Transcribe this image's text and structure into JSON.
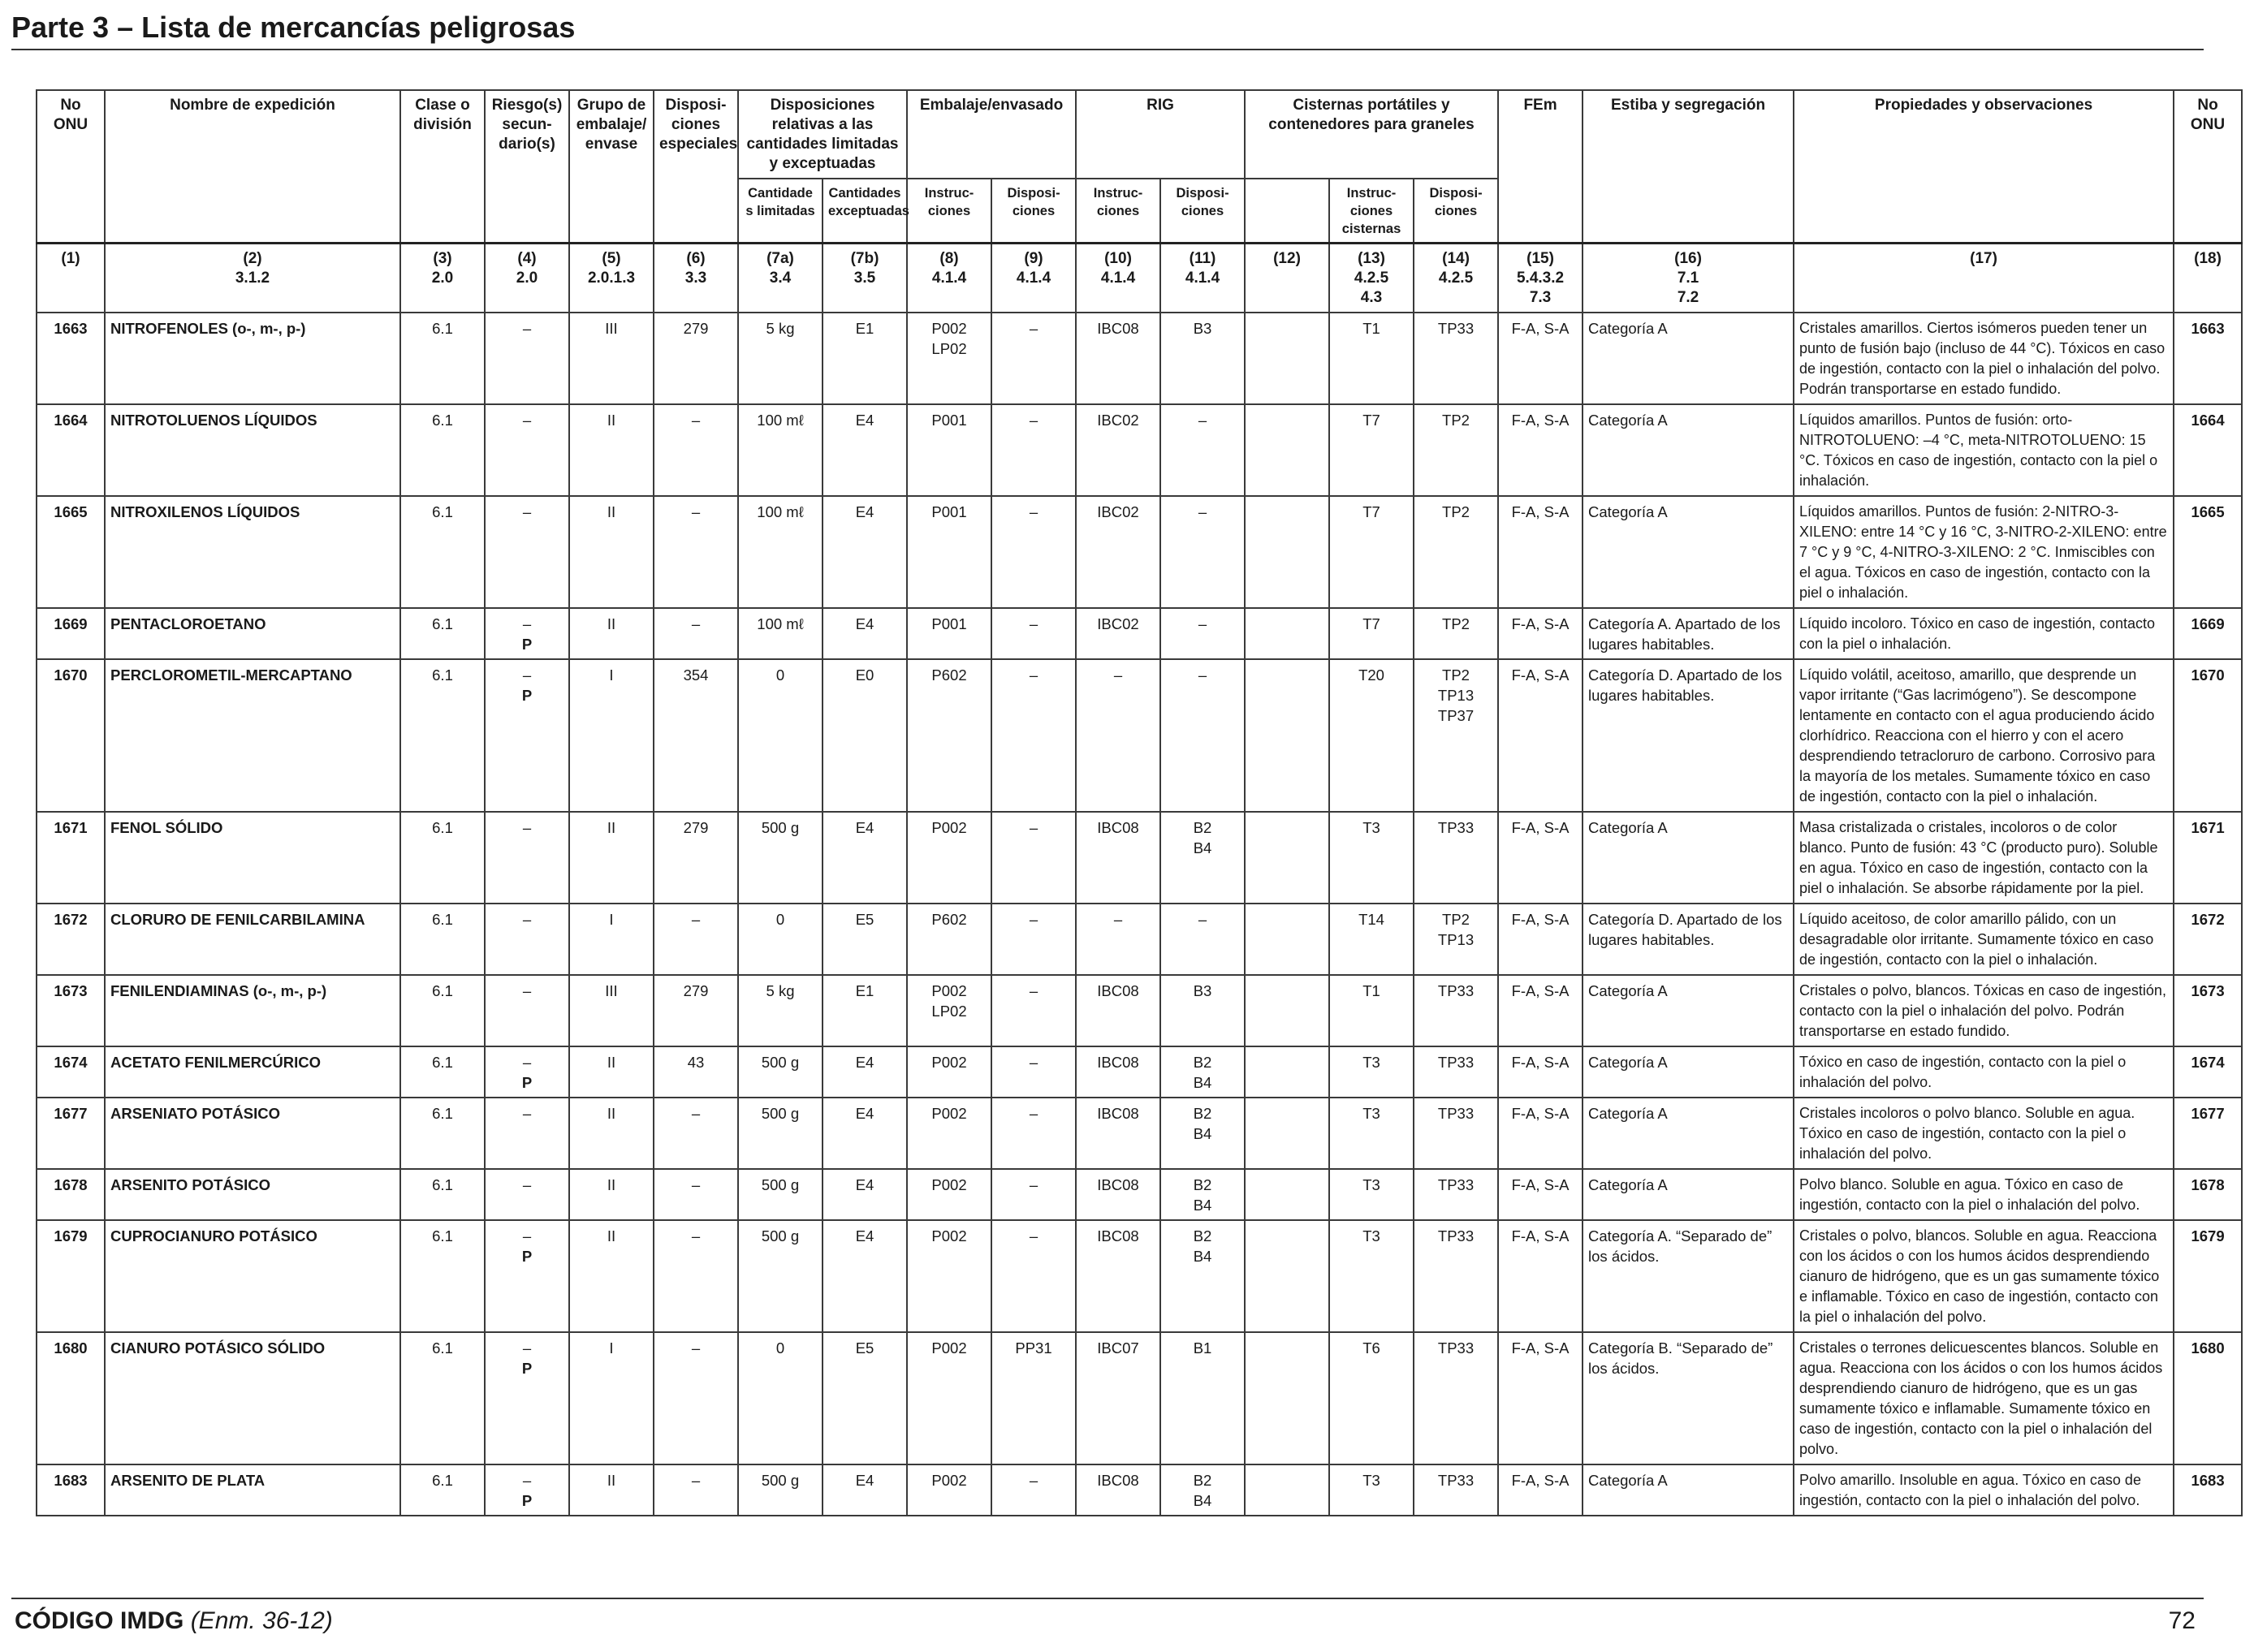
{
  "header": {
    "title": "Parte 3 – Lista de mercancías peligrosas"
  },
  "table": {
    "headers": {
      "onu": "No ONU",
      "name": "Nombre de expedición",
      "clase": "Clase o división",
      "riesgo": "Riesgo(s) secun- dario(s)",
      "grupo": "Grupo de embalaje/ envase",
      "disp_esp": "Disposi- ciones especiales",
      "disp_rel": "Disposiciones relativas a las cantidades limitadas y exceptuadas",
      "cant_lim": "Cantidade s limitadas",
      "cant_exc": "Cantidades exceptuadas",
      "embalaje": "Embalaje/envasado",
      "emb_instr": "Instruc- ciones",
      "emb_disp": "Disposi- ciones",
      "rig": "RIG",
      "rig_instr": "Instruc- ciones",
      "rig_disp": "Disposi- ciones",
      "cisternas": "Cisternas portátiles y contenedores para graneles",
      "cis_instr": "Instruc- ciones cisternas",
      "cis_disp": "Disposi- ciones",
      "fem": "FEm",
      "estiba": "Estiba y segregación",
      "propiedades": "Propiedades y observaciones",
      "onu_right": "No ONU"
    },
    "refs": [
      [
        "(1)"
      ],
      [
        "(2)",
        "3.1.2"
      ],
      [
        "(3)",
        "2.0"
      ],
      [
        "(4)",
        "2.0"
      ],
      [
        "(5)",
        "2.0.1.3"
      ],
      [
        "(6)",
        "3.3"
      ],
      [
        "(7a)",
        "3.4"
      ],
      [
        "(7b)",
        "3.5"
      ],
      [
        "(8)",
        "4.1.4"
      ],
      [
        "(9)",
        "4.1.4"
      ],
      [
        "(10)",
        "4.1.4"
      ],
      [
        "(11)",
        "4.1.4"
      ],
      [
        "(12)"
      ],
      [
        "(13)",
        "4.2.5",
        "4.3"
      ],
      [
        "(14)",
        "4.2.5"
      ],
      [
        "(15)",
        "5.4.3.2",
        "7.3"
      ],
      [
        "(16)",
        "7.1",
        "7.2"
      ],
      [
        "(17)"
      ],
      [
        "(18)"
      ]
    ],
    "rows": [
      {
        "onu": "1663",
        "name": "NITROFENOLES (o-, m-, p-)",
        "clase": "6.1",
        "riesgo": [
          "–"
        ],
        "grupo": "III",
        "disp_esp": "279",
        "cant_lim": "5 kg",
        "cant_exc": "E1",
        "emb_instr": [
          "P002",
          "LP02"
        ],
        "emb_disp": "–",
        "rig_instr": "IBC08",
        "rig_disp": [
          "B3"
        ],
        "c12": "",
        "cis_instr": "T1",
        "cis_disp": [
          "TP33"
        ],
        "fem": "F-A, S-A",
        "estiba": "Categoría A",
        "props": "Cristales amarillos. Ciertos isómeros pueden tener un punto de fusión bajo (incluso de 44 °C). Tóxicos en caso de ingestión, contacto con la piel o inhalación del polvo. Podrán transportarse en estado fundido.",
        "onu_r": "1663"
      },
      {
        "onu": "1664",
        "name": "NITROTOLUENOS LÍQUIDOS",
        "clase": "6.1",
        "riesgo": [
          "–"
        ],
        "grupo": "II",
        "disp_esp": "–",
        "cant_lim": "100 mℓ",
        "cant_exc": "E4",
        "emb_instr": [
          "P001"
        ],
        "emb_disp": "–",
        "rig_instr": "IBC02",
        "rig_disp": [
          "–"
        ],
        "c12": "",
        "cis_instr": "T7",
        "cis_disp": [
          "TP2"
        ],
        "fem": "F-A, S-A",
        "estiba": "Categoría A",
        "props": "Líquidos amarillos. Puntos de fusión: orto-NITROTOLUENO: –4 °C, meta-NITROTOLUENO: 15 °C. Tóxicos en caso de ingestión, contacto con la piel o inhalación.",
        "onu_r": "1664"
      },
      {
        "onu": "1665",
        "name": "NITROXILENOS LÍQUIDOS",
        "clase": "6.1",
        "riesgo": [
          "–"
        ],
        "grupo": "II",
        "disp_esp": "–",
        "cant_lim": "100 mℓ",
        "cant_exc": "E4",
        "emb_instr": [
          "P001"
        ],
        "emb_disp": "–",
        "rig_instr": "IBC02",
        "rig_disp": [
          "–"
        ],
        "c12": "",
        "cis_instr": "T7",
        "cis_disp": [
          "TP2"
        ],
        "fem": "F-A, S-A",
        "estiba": "Categoría A",
        "props": "Líquidos amarillos. Puntos de fusión: 2-NITRO-3-XILENO: entre 14 °C y 16 °C, 3-NITRO-2-XILENO: entre 7 °C y 9 °C, 4-NITRO-3-XILENO: 2 °C. Inmiscibles con el agua. Tóxicos en caso de ingestión, contacto con la piel o inhalación.",
        "onu_r": "1665"
      },
      {
        "onu": "1669",
        "name": "PENTACLOROETANO",
        "clase": "6.1",
        "riesgo": [
          "–",
          "P"
        ],
        "grupo": "II",
        "disp_esp": "–",
        "cant_lim": "100 mℓ",
        "cant_exc": "E4",
        "emb_instr": [
          "P001"
        ],
        "emb_disp": "–",
        "rig_instr": "IBC02",
        "rig_disp": [
          "–"
        ],
        "c12": "",
        "cis_instr": "T7",
        "cis_disp": [
          "TP2"
        ],
        "fem": "F-A, S-A",
        "estiba": "Categoría A. Apartado de los lugares habitables.",
        "props": "Líquido incoloro. Tóxico en caso de ingestión, contacto con la piel o inhalación.",
        "onu_r": "1669"
      },
      {
        "onu": "1670",
        "name": "PERCLOROMETIL-MERCAPTANO",
        "clase": "6.1",
        "riesgo": [
          "–",
          "P"
        ],
        "grupo": "I",
        "disp_esp": "354",
        "cant_lim": "0",
        "cant_exc": "E0",
        "emb_instr": [
          "P602"
        ],
        "emb_disp": "–",
        "rig_instr": "–",
        "rig_disp": [
          "–"
        ],
        "c12": "",
        "cis_instr": "T20",
        "cis_disp": [
          "TP2",
          "TP13",
          "TP37"
        ],
        "fem": "F-A, S-A",
        "estiba": "Categoría D. Apartado de los lugares habitables.",
        "props": "Líquido volátil, aceitoso, amarillo, que desprende un vapor irritante (“Gas lacrimógeno”). Se descompone lentamente en contacto con el agua produciendo ácido clorhídrico. Reacciona con el hierro y con el acero desprendiendo tetracloruro de carbono. Corrosivo para la mayoría de los metales. Sumamente tóxico en caso de ingestión, contacto con la piel o inhalación.",
        "onu_r": "1670"
      },
      {
        "onu": "1671",
        "name": "FENOL SÓLIDO",
        "clase": "6.1",
        "riesgo": [
          "–"
        ],
        "grupo": "II",
        "disp_esp": "279",
        "cant_lim": "500 g",
        "cant_exc": "E4",
        "emb_instr": [
          "P002"
        ],
        "emb_disp": "–",
        "rig_instr": "IBC08",
        "rig_disp": [
          "B2",
          "B4"
        ],
        "c12": "",
        "cis_instr": "T3",
        "cis_disp": [
          "TP33"
        ],
        "fem": "F-A, S-A",
        "estiba": "Categoría A",
        "props": "Masa cristalizada o cristales, incoloros o de color blanco. Punto de fusión: 43 °C (producto puro). Soluble en agua. Tóxico en caso de ingestión, contacto con la piel o inhalación. Se absorbe rápidamente por la piel.",
        "onu_r": "1671"
      },
      {
        "onu": "1672",
        "name": "CLORURO DE FENILCARBILAMINA",
        "clase": "6.1",
        "riesgo": [
          "–"
        ],
        "grupo": "I",
        "disp_esp": "–",
        "cant_lim": "0",
        "cant_exc": "E5",
        "emb_instr": [
          "P602"
        ],
        "emb_disp": "–",
        "rig_instr": "–",
        "rig_disp": [
          "–"
        ],
        "c12": "",
        "cis_instr": "T14",
        "cis_disp": [
          "TP2",
          "TP13"
        ],
        "fem": "F-A, S-A",
        "estiba": "Categoría D. Apartado de los lugares habitables.",
        "props": "Líquido aceitoso, de color amarillo pálido, con un desagradable olor irritante. Sumamente tóxico en caso de ingestión, contacto con la piel o inhalación.",
        "onu_r": "1672"
      },
      {
        "onu": "1673",
        "name": "FENILENDIAMINAS (o-, m-, p-)",
        "clase": "6.1",
        "riesgo": [
          "–"
        ],
        "grupo": "III",
        "disp_esp": "279",
        "cant_lim": "5 kg",
        "cant_exc": "E1",
        "emb_instr": [
          "P002",
          "LP02"
        ],
        "emb_disp": "–",
        "rig_instr": "IBC08",
        "rig_disp": [
          "B3"
        ],
        "c12": "",
        "cis_instr": "T1",
        "cis_disp": [
          "TP33"
        ],
        "fem": "F-A, S-A",
        "estiba": "Categoría A",
        "props": "Cristales o polvo, blancos. Tóxicas en caso de ingestión, contacto con la piel o inhalación del polvo. Podrán transportarse en estado fundido.",
        "onu_r": "1673"
      },
      {
        "onu": "1674",
        "name": "ACETATO FENILMERCÚRICO",
        "clase": "6.1",
        "riesgo": [
          "–",
          "P"
        ],
        "grupo": "II",
        "disp_esp": "43",
        "cant_lim": "500 g",
        "cant_exc": "E4",
        "emb_instr": [
          "P002"
        ],
        "emb_disp": "–",
        "rig_instr": "IBC08",
        "rig_disp": [
          "B2",
          "B4"
        ],
        "c12": "",
        "cis_instr": "T3",
        "cis_disp": [
          "TP33"
        ],
        "fem": "F-A, S-A",
        "estiba": "Categoría A",
        "props": "Tóxico en caso de ingestión, contacto con la piel o inhalación del polvo.",
        "onu_r": "1674"
      },
      {
        "onu": "1677",
        "name": "ARSENIATO POTÁSICO",
        "clase": "6.1",
        "riesgo": [
          "–"
        ],
        "grupo": "II",
        "disp_esp": "–",
        "cant_lim": "500 g",
        "cant_exc": "E4",
        "emb_instr": [
          "P002"
        ],
        "emb_disp": "–",
        "rig_instr": "IBC08",
        "rig_disp": [
          "B2",
          "B4"
        ],
        "c12": "",
        "cis_instr": "T3",
        "cis_disp": [
          "TP33"
        ],
        "fem": "F-A, S-A",
        "estiba": "Categoría A",
        "props": "Cristales incoloros o polvo blanco. Soluble en agua. Tóxico en caso de ingestión, contacto con la piel o inhalación del polvo.",
        "onu_r": "1677"
      },
      {
        "onu": "1678",
        "name": "ARSENITO POTÁSICO",
        "clase": "6.1",
        "riesgo": [
          "–"
        ],
        "grupo": "II",
        "disp_esp": "–",
        "cant_lim": "500 g",
        "cant_exc": "E4",
        "emb_instr": [
          "P002"
        ],
        "emb_disp": "–",
        "rig_instr": "IBC08",
        "rig_disp": [
          "B2",
          "B4"
        ],
        "c12": "",
        "cis_instr": "T3",
        "cis_disp": [
          "TP33"
        ],
        "fem": "F-A, S-A",
        "estiba": "Categoría A",
        "props": "Polvo blanco. Soluble en agua. Tóxico en caso de ingestión, contacto con la piel o inhalación del polvo.",
        "onu_r": "1678"
      },
      {
        "onu": "1679",
        "name": "CUPROCIANURO POTÁSICO",
        "clase": "6.1",
        "riesgo": [
          "–",
          "P"
        ],
        "grupo": "II",
        "disp_esp": "–",
        "cant_lim": "500 g",
        "cant_exc": "E4",
        "emb_instr": [
          "P002"
        ],
        "emb_disp": "–",
        "rig_instr": "IBC08",
        "rig_disp": [
          "B2",
          "B4"
        ],
        "c12": "",
        "cis_instr": "T3",
        "cis_disp": [
          "TP33"
        ],
        "fem": "F-A, S-A",
        "estiba": "Categoría A. “Separado de” los ácidos.",
        "props": "Cristales o polvo, blancos. Soluble en agua. Reacciona con los ácidos o con los humos ácidos desprendiendo cianuro de hidrógeno, que es un gas sumamente tóxico e inflamable. Tóxico en caso de ingestión, contacto con la piel o inhalación del polvo.",
        "onu_r": "1679"
      },
      {
        "onu": "1680",
        "name": "CIANURO POTÁSICO SÓLIDO",
        "clase": "6.1",
        "riesgo": [
          "–",
          "P"
        ],
        "grupo": "I",
        "disp_esp": "–",
        "cant_lim": "0",
        "cant_exc": "E5",
        "emb_instr": [
          "P002"
        ],
        "emb_disp": "PP31",
        "rig_instr": "IBC07",
        "rig_disp": [
          "B1"
        ],
        "c12": "",
        "cis_instr": "T6",
        "cis_disp": [
          "TP33"
        ],
        "fem": "F-A, S-A",
        "estiba": "Categoría B. “Separado de” los ácidos.",
        "props": "Cristales o terrones delicuescentes blancos. Soluble en agua. Reacciona con los ácidos o con los humos ácidos desprendiendo cianuro de hidrógeno, que es un gas sumamente tóxico e inflamable. Sumamente tóxico en caso de ingestión, contacto con la piel o inhalación del polvo.",
        "onu_r": "1680"
      },
      {
        "onu": "1683",
        "name": "ARSENITO DE PLATA",
        "clase": "6.1",
        "riesgo": [
          "–",
          "P"
        ],
        "grupo": "II",
        "disp_esp": "–",
        "cant_lim": "500 g",
        "cant_exc": "E4",
        "emb_instr": [
          "P002"
        ],
        "emb_disp": "–",
        "rig_instr": "IBC08",
        "rig_disp": [
          "B2",
          "B4"
        ],
        "c12": "",
        "cis_instr": "T3",
        "cis_disp": [
          "TP33"
        ],
        "fem": "F-A, S-A",
        "estiba": "Categoría A",
        "props": "Polvo amarillo. Insoluble en agua. Tóxico en caso de ingestión, contacto con la piel o inhalación del polvo.",
        "onu_r": "1683"
      }
    ]
  },
  "footer": {
    "code": "CÓDIGO IMDG",
    "edition": "(Enm. 36-12)",
    "page": "72"
  }
}
